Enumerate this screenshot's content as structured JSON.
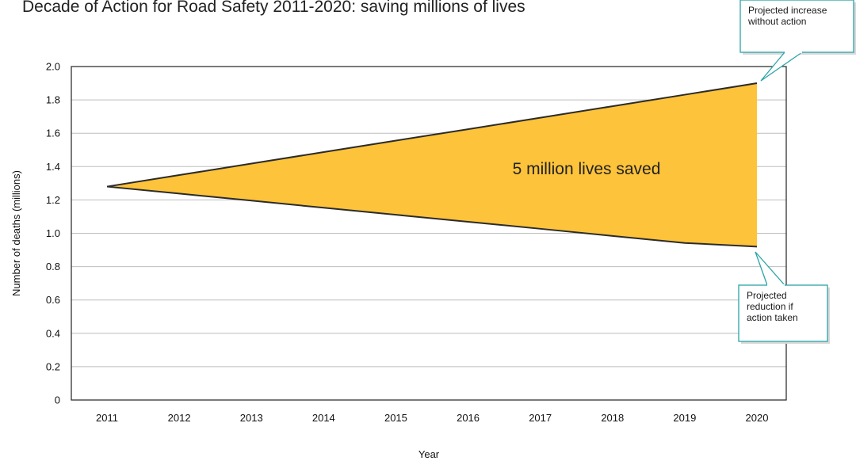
{
  "chart_data": {
    "type": "area",
    "title": "Decade of Action for Road Safety 2011-2020: saving millions of lives",
    "xlabel": "Year",
    "ylabel": "Number of deaths (millions)",
    "x": [
      2011,
      2012,
      2013,
      2014,
      2015,
      2016,
      2017,
      2018,
      2019,
      2020
    ],
    "ylim": [
      0,
      2.0
    ],
    "yticks": [
      "0",
      "0.2",
      "0.4",
      "0.6",
      "0.8",
      "1.0",
      "1.2",
      "1.4",
      "1.6",
      "1.8",
      "2.0"
    ],
    "grid": true,
    "series": [
      {
        "name": "",
        "values": [
          1.28,
          1.349,
          1.418,
          1.487,
          1.556,
          1.624,
          1.693,
          1.762,
          1.831,
          1.9
        ]
      },
      {
        "name": "",
        "values": [
          1.28,
          1.238,
          1.196,
          1.153,
          1.111,
          1.069,
          1.027,
          0.984,
          0.942,
          0.92
        ]
      }
    ],
    "fill_color": "#FDC33A",
    "line_color": "#2b2b2b",
    "callout_color": "#2aa4a8",
    "annotations": {
      "area_label": "5 million lives saved",
      "upper_callout": [
        "Projected increase",
        "without action"
      ],
      "lower_callout": [
        "Projected",
        "reduction if",
        "action taken"
      ]
    }
  }
}
